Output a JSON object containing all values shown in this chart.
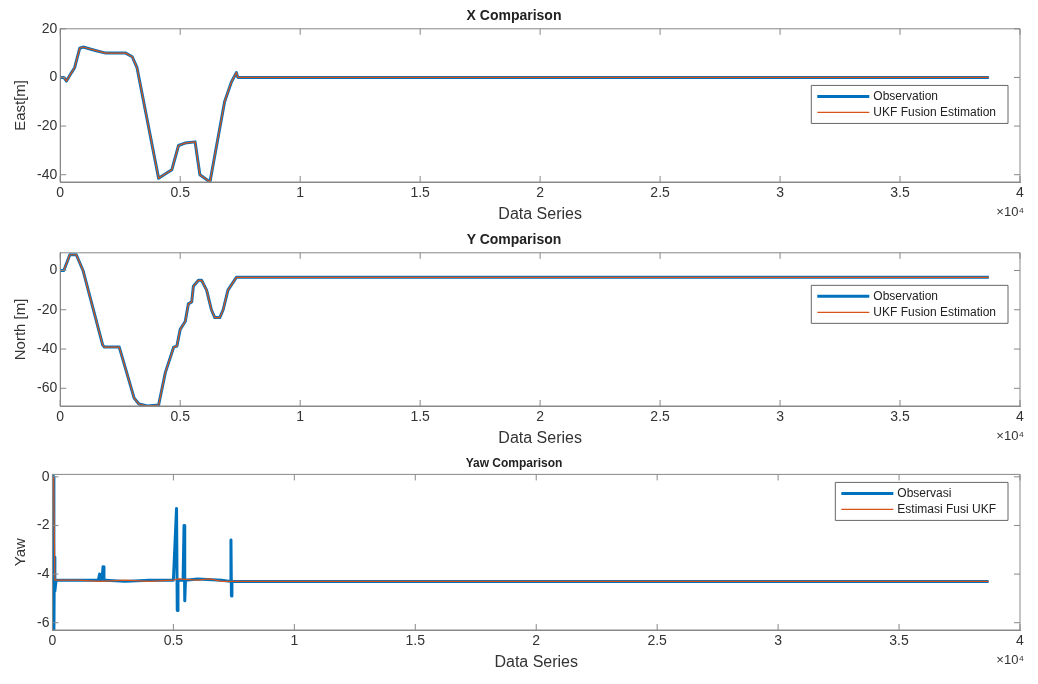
{
  "chart_data": [
    {
      "type": "line",
      "title": "X Comparison",
      "xlabel": "Data Series",
      "ylabel": "East[m]",
      "xlim": [
        0,
        4
      ],
      "xticks": [
        0,
        0.5,
        1,
        1.5,
        2,
        2.5,
        3,
        3.5,
        4
      ],
      "ylim": [
        -43,
        20
      ],
      "yticks": [
        -40,
        -20,
        0,
        20
      ],
      "legend": "top right",
      "grid": false,
      "annotations": [
        "×10⁴"
      ],
      "x": [
        0,
        0.015,
        0.026,
        0.047,
        0.06,
        0.081,
        0.095,
        0.15,
        0.19,
        0.273,
        0.3,
        0.32,
        0.41,
        0.465,
        0.493,
        0.52,
        0.562,
        0.582,
        0.624,
        0.685,
        0.713,
        0.734,
        0.74,
        3.87
      ],
      "series": [
        {
          "name": "Observation",
          "color": "#0072bd",
          "values": [
            0,
            0,
            -1.5,
            2,
            4,
            12,
            12.5,
            11,
            10,
            10,
            8.5,
            4,
            -41.5,
            -38,
            -28,
            -27,
            -26.5,
            -40,
            -43,
            -10,
            -2,
            2,
            0,
            0
          ]
        },
        {
          "name": "UKF Fusion Estimation",
          "color": "#d95319",
          "values": [
            0,
            0,
            -1.5,
            2,
            4,
            12,
            12.5,
            11,
            10,
            10,
            8.5,
            4,
            -41.5,
            -38,
            -28,
            -27,
            -26.5,
            -40,
            -43,
            -10,
            -2,
            2,
            0,
            0
          ]
        }
      ]
    },
    {
      "type": "line",
      "title": "Y Comparison",
      "xlabel": "Data Series",
      "ylabel": "North [m]",
      "xlim": [
        0,
        4
      ],
      "xticks": [
        0,
        0.5,
        1,
        1.5,
        2,
        2.5,
        3,
        3.5,
        4
      ],
      "ylim": [
        -69,
        9
      ],
      "yticks": [
        -60,
        -40,
        -20,
        0
      ],
      "legend": "top right",
      "grid": false,
      "annotations": [
        "×10⁴"
      ],
      "x": [
        0,
        0.015,
        0.04,
        0.067,
        0.095,
        0.177,
        0.184,
        0.246,
        0.308,
        0.328,
        0.363,
        0.41,
        0.438,
        0.473,
        0.486,
        0.5,
        0.521,
        0.534,
        0.548,
        0.555,
        0.576,
        0.589,
        0.61,
        0.63,
        0.644,
        0.665,
        0.679,
        0.699,
        0.734,
        3.87
      ],
      "series": [
        {
          "name": "Observation",
          "color": "#0072bd",
          "values": [
            0,
            0,
            8,
            8,
            0,
            -38,
            -39,
            -39,
            -65,
            -68,
            -69,
            -68.5,
            -52,
            -39,
            -38.5,
            -30,
            -26,
            -17,
            -16,
            -8,
            -5,
            -5,
            -10,
            -20,
            -24,
            -24,
            -20,
            -10,
            -3.5,
            -3.5
          ]
        },
        {
          "name": "UKF Fusion Estimation",
          "color": "#d95319",
          "values": [
            0,
            0,
            8,
            8,
            0,
            -38,
            -39,
            -39,
            -65,
            -68,
            -69,
            -68.5,
            -52,
            -39,
            -38.5,
            -30,
            -26,
            -17,
            -16,
            -8,
            -5,
            -5,
            -10,
            -20,
            -24,
            -24,
            -20,
            -10,
            -3.5,
            -3.5
          ]
        }
      ]
    },
    {
      "type": "line",
      "title": "Yaw Comparison",
      "xlabel": "Data Series",
      "ylabel": "Yaw",
      "xlim": [
        0,
        4
      ],
      "xticks": [
        0,
        0.5,
        1,
        1.5,
        2,
        2.5,
        3,
        3.5,
        4
      ],
      "ylim": [
        -6.3,
        0.1
      ],
      "yticks": [
        -6,
        -4,
        -2,
        0
      ],
      "legend": "top right",
      "grid": false,
      "annotations": [
        "×10⁴"
      ],
      "series": [
        {
          "name": "Observasi",
          "color": "#0072bd",
          "x": [
            0,
            0.005,
            0.006,
            0.008,
            0.01,
            0.015,
            0.1,
            0.19,
            0.195,
            0.2,
            0.205,
            0.209,
            0.213,
            0.22,
            0.3,
            0.4,
            0.5,
            0.513,
            0.516,
            0.519,
            0.54,
            0.544,
            0.547,
            0.55,
            0.6,
            0.7,
            0.735,
            0.738,
            0.74,
            0.742,
            0.8,
            3.87
          ],
          "values": [
            0,
            0,
            -6.3,
            -3.3,
            -4.7,
            -4.25,
            -4.25,
            -4.25,
            -4,
            -4.25,
            -4.25,
            -3.7,
            -4.25,
            -4.25,
            -4.3,
            -4.25,
            -4.25,
            -1.3,
            -5.5,
            -4.25,
            -4.25,
            -2,
            -5.1,
            -4.25,
            -4.2,
            -4.25,
            -4.3,
            -2.6,
            -4.9,
            -4.3,
            -4.3,
            -4.3
          ]
        },
        {
          "name": "Estimasi Fusi UKF",
          "color": "#d95319",
          "x": [
            0,
            0.005,
            0.01,
            0.1,
            0.2,
            0.3,
            0.4,
            0.5,
            0.52,
            0.6,
            0.65,
            0.7,
            0.75,
            3.87
          ],
          "values": [
            0,
            0,
            -4.25,
            -4.25,
            -4.3,
            -4.25,
            -4.3,
            -4.25,
            -4.2,
            -4.25,
            -4.2,
            -4.3,
            -4.3,
            -4.3
          ]
        }
      ]
    }
  ]
}
